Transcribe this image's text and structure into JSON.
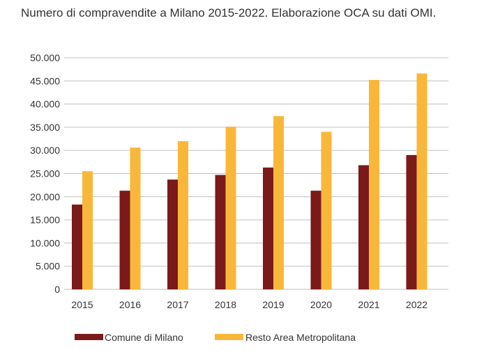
{
  "chart_data": {
    "type": "bar",
    "title": "Numero di compravendite a Milano 2015-2022. Elaborazione OCA su dati OMI.",
    "xlabel": "",
    "ylabel": "",
    "categories": [
      "2015",
      "2016",
      "2017",
      "2018",
      "2019",
      "2020",
      "2021",
      "2022"
    ],
    "series": [
      {
        "name": "Comune di Milano",
        "color": "#7b1a1a",
        "values": [
          18300,
          21300,
          23700,
          24700,
          26300,
          21300,
          26800,
          29000
        ]
      },
      {
        "name": "Resto Area Metropolitana",
        "color": "#f9b73a",
        "values": [
          25500,
          30600,
          32000,
          35100,
          37400,
          34000,
          45200,
          46600
        ]
      }
    ],
    "ylim": [
      0,
      50000
    ],
    "yticks": [
      0,
      5000,
      10000,
      15000,
      20000,
      25000,
      30000,
      35000,
      40000,
      45000,
      50000
    ],
    "ytick_labels": [
      "0",
      "5.000",
      "10.000",
      "15.000",
      "20.000",
      "25.000",
      "30.000",
      "35.000",
      "40.000",
      "45.000",
      "50.000"
    ],
    "grid": true,
    "gridline_color": "#bfbfbf",
    "legend_position": "bottom"
  }
}
